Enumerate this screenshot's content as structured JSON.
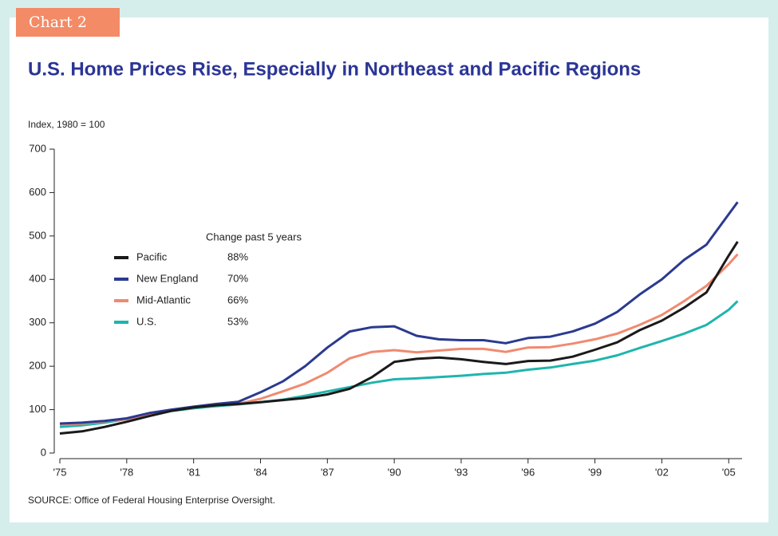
{
  "chart_data": {
    "type": "line",
    "tag": "Chart 2",
    "title": "U.S. Home Prices Rise, Especially in Northeast and Pacific Regions",
    "y_label": "Index, 1980 = 100",
    "source": "SOURCE: Office of Federal Housing Enterprise Oversight.",
    "legend_title": "Change past 5 years",
    "x": [
      1975,
      1976,
      1977,
      1978,
      1979,
      1980,
      1981,
      1982,
      1983,
      1984,
      1985,
      1986,
      1987,
      1988,
      1989,
      1990,
      1991,
      1992,
      1993,
      1994,
      1995,
      1996,
      1997,
      1998,
      1999,
      2000,
      2001,
      2002,
      2003,
      2004,
      2005,
      2005.4
    ],
    "series": [
      {
        "name": "Pacific",
        "color": "#1a1a1a",
        "change": {
          "value": 88,
          "label": "88%"
        },
        "values": [
          45,
          50,
          60,
          72,
          85,
          97,
          105,
          110,
          113,
          117,
          122,
          127,
          135,
          148,
          175,
          210,
          217,
          220,
          216,
          210,
          205,
          212,
          213,
          222,
          238,
          255,
          283,
          305,
          335,
          370,
          455,
          487
        ]
      },
      {
        "name": "New England",
        "color": "#2b3a8f",
        "change": {
          "value": 70,
          "label": "70%"
        },
        "values": [
          68,
          70,
          74,
          80,
          92,
          100,
          107,
          113,
          118,
          140,
          165,
          200,
          243,
          280,
          290,
          292,
          270,
          262,
          260,
          260,
          253,
          265,
          268,
          280,
          298,
          325,
          365,
          400,
          445,
          480,
          550,
          578
        ]
      },
      {
        "name": "Mid-Atlantic",
        "color": "#f08a70",
        "change": {
          "value": 66,
          "label": "66%"
        },
        "values": [
          65,
          68,
          73,
          78,
          87,
          98,
          105,
          110,
          113,
          125,
          142,
          160,
          185,
          218,
          233,
          237,
          232,
          236,
          240,
          240,
          233,
          243,
          244,
          252,
          262,
          275,
          295,
          318,
          350,
          385,
          435,
          458
        ]
      },
      {
        "name": "U.S.",
        "color": "#1fb5ad",
        "change": {
          "value": 53,
          "label": "53%"
        },
        "values": [
          60,
          64,
          70,
          78,
          88,
          97,
          103,
          108,
          112,
          117,
          123,
          132,
          142,
          152,
          162,
          170,
          172,
          175,
          178,
          182,
          185,
          192,
          197,
          205,
          213,
          225,
          242,
          258,
          275,
          295,
          330,
          350
        ]
      }
    ],
    "xlim": [
      1975,
      2005.6
    ],
    "ylim": [
      0,
      700
    ],
    "xticks": [
      {
        "value": 1975,
        "label": "'75"
      },
      {
        "value": 1978,
        "label": "'78"
      },
      {
        "value": 1981,
        "label": "'81"
      },
      {
        "value": 1984,
        "label": "'84"
      },
      {
        "value": 1987,
        "label": "'87"
      },
      {
        "value": 1990,
        "label": "'90"
      },
      {
        "value": 1993,
        "label": "'93"
      },
      {
        "value": 1996,
        "label": "'96"
      },
      {
        "value": 1999,
        "label": "'99"
      },
      {
        "value": 2002,
        "label": "'02"
      },
      {
        "value": 2005,
        "label": "'05"
      }
    ],
    "yticks": [
      0,
      100,
      200,
      300,
      400,
      500,
      600,
      700
    ],
    "grid": false
  }
}
